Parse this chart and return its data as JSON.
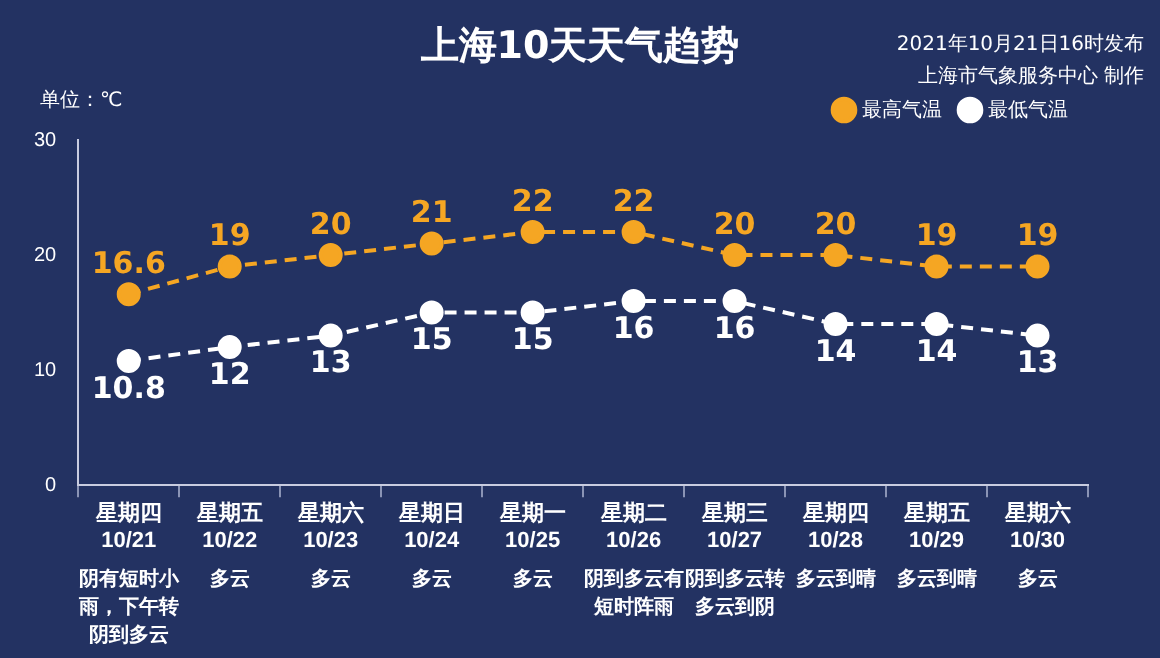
{
  "chart_data": {
    "type": "line",
    "title": "上海10天天气趋势",
    "ylabel": "单位：℃",
    "categories": [
      "星期四 10/21",
      "星期五 10/22",
      "星期六 10/23",
      "星期日 10/24",
      "星期一 10/25",
      "星期二 10/26",
      "星期三 10/27",
      "星期四 10/28",
      "星期五 10/29",
      "星期六 10/30"
    ],
    "series": [
      {
        "name": "最高气温",
        "color": "#f5a623",
        "values": [
          16.6,
          19,
          20,
          21,
          22,
          22,
          20,
          20,
          19,
          19
        ]
      },
      {
        "name": "最低气温",
        "color": "#ffffff",
        "values": [
          10.8,
          12,
          13,
          15,
          15,
          16,
          16,
          14,
          14,
          13
        ]
      }
    ],
    "ylim": [
      0,
      30
    ],
    "yticks": [
      0,
      10,
      20,
      30
    ],
    "grid": false,
    "legend": "top right",
    "marker": "circle",
    "line_style": "dashed",
    "data_labels": true,
    "annotations": [
      "2021年10月21日16时发布",
      "上海市气象服务中心 制作",
      "阴有短时小雨，下午转阴到多云",
      "多云",
      "多云",
      "多云",
      "多云",
      "阴到多云有短时阵雨",
      "阴到多云转多云到阴",
      "多云到晴",
      "多云到晴",
      "多云"
    ]
  }
}
